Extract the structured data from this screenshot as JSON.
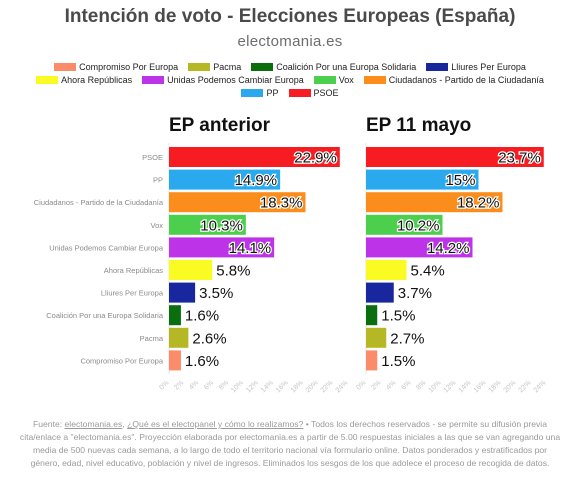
{
  "header": {
    "title": "Intención de voto - Elecciones Europeas (España)",
    "subtitle": "electomania.es"
  },
  "colors": {
    "Compromiso Por Europa": "#fb8c69",
    "Pacma": "#b5b824",
    "Coalición Por una Europa Solidaria": "#0a6e0f",
    "Lliures Per Europa": "#18279e",
    "Ahora Repúblicas": "#fbfb24",
    "Unidas Podemos Cambiar Europa": "#bd34e8",
    "Vox": "#4ccf4c",
    "Ciudadanos - Partido de la Ciudadanía": "#fb8d1c",
    "PP": "#2aa9ef",
    "PSOE": "#f71c22"
  },
  "legend": [
    "Compromiso Por Europa",
    "Pacma",
    "Coalición Por una Europa Solidaria",
    "Lliures Per Europa",
    "Ahora Repúblicas",
    "Unidas Podemos Cambiar Europa",
    "Vox",
    "Ciudadanos - Partido de la Ciudadanía",
    "PP",
    "PSOE"
  ],
  "chart_data": [
    {
      "type": "bar",
      "orientation": "horizontal",
      "title": "EP anterior",
      "categories": [
        "PSOE",
        "PP",
        "Ciudadanos - Partido de la Ciudadanía",
        "Vox",
        "Unidas Podemos Cambiar Europa",
        "Ahora Repúblicas",
        "Lliures Per Europa",
        "Coalición Por una Europa Solidaria",
        "Pacma",
        "Compromiso Por Europa"
      ],
      "values": [
        22.9,
        14.9,
        18.3,
        10.3,
        14.1,
        5.8,
        3.5,
        1.6,
        2.6,
        1.6
      ],
      "labels": [
        "22.9%",
        "14.9%",
        "18.3%",
        "10.3%",
        "14.1%",
        "5.8%",
        "3.5%",
        "1.6%",
        "2.6%",
        "1.6%"
      ],
      "xlim": [
        0,
        24
      ],
      "ticks": [
        "0%",
        "2%",
        "4%",
        "6%",
        "8%",
        "10%",
        "12%",
        "14%",
        "16%",
        "18%",
        "20%",
        "22%",
        "24%"
      ]
    },
    {
      "type": "bar",
      "orientation": "horizontal",
      "title": "EP 11 mayo",
      "categories": [
        "PSOE",
        "PP",
        "Ciudadanos - Partido de la Ciudadanía",
        "Vox",
        "Unidas Podemos Cambiar Europa",
        "Ahora Repúblicas",
        "Lliures Per Europa",
        "Coalición Por una Europa Solidaria",
        "Pacma",
        "Compromiso Por Europa"
      ],
      "values": [
        23.7,
        15,
        18.2,
        10.2,
        14.2,
        5.4,
        3.7,
        1.5,
        2.7,
        1.5
      ],
      "labels": [
        "23.7%",
        "15%",
        "18.2%",
        "10.2%",
        "14.2%",
        "5.4%",
        "3.7%",
        "1.5%",
        "2.7%",
        "1.5%"
      ],
      "xlim": [
        0,
        24
      ],
      "ticks": [
        "0%",
        "2%",
        "4%",
        "6%",
        "8%",
        "10%",
        "12%",
        "14%",
        "16%",
        "18%",
        "20%",
        "22%",
        "24%"
      ]
    }
  ],
  "footer": {
    "prefix": "Fuente: ",
    "link1": "electomania.es",
    "sep": ", ",
    "link2": "¿Qué es el electopanel y cómo lo realizamos?",
    "rest": " • Todos los derechos reservados - se permite su difusión previa cita/enlace a \"electomania.es\". Proyección elaborada por electomania.es a partir de 5.00 respuestas iniciales a las que se van agregando una media de 500 nuevas cada semana, a lo largo de todo el territorio nacional vía formulario online. Datos ponderados y estratificados por género, edad, nivel educativo, población y nivel de ingresos. Eliminados los sesgos de los que adolece el proceso de recogida de datos."
  }
}
